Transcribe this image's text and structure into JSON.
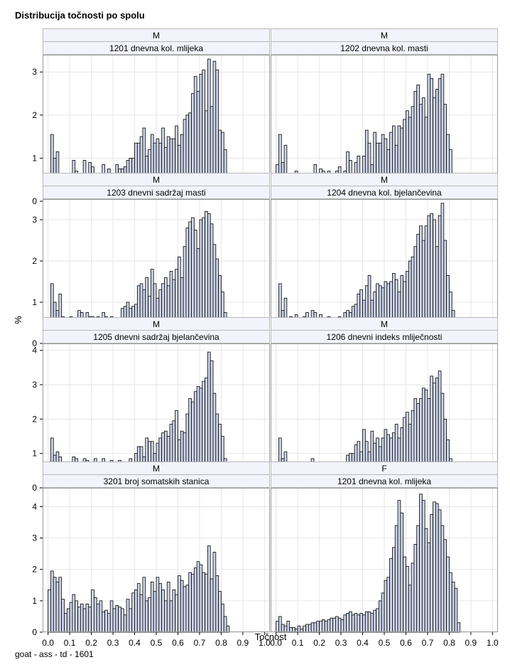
{
  "title": "Distribucija točnosti po spolu",
  "footnote": "goat - ass - td - 1601",
  "chart_data": {
    "type": "bar",
    "title": "Distribucija točnosti po spolu",
    "xlabel": "Točnost",
    "ylabel": "%",
    "x_ticks": [
      0.0,
      0.1,
      0.2,
      0.3,
      0.4,
      0.5,
      0.6,
      0.7,
      0.8,
      0.9,
      1.0
    ],
    "x_tick_labels": [
      "0.0",
      "0.1",
      "0.2",
      "0.3",
      "0.4",
      "0.5",
      "0.6",
      "0.7",
      "0.8",
      "0.9",
      "1.0"
    ],
    "bin_width": 0.0125,
    "xlim": [
      -0.025,
      1.025
    ],
    "rows": [
      {
        "ylim": [
          0,
          3.4
        ],
        "y_ticks": [
          0,
          1,
          2,
          3
        ]
      },
      {
        "ylim": [
          0,
          3.5
        ],
        "y_ticks": [
          0,
          1,
          2,
          3
        ]
      },
      {
        "ylim": [
          0,
          4.2
        ],
        "y_ticks": [
          0,
          1,
          2,
          3,
          4
        ]
      },
      {
        "ylim": [
          0,
          4.6
        ],
        "y_ticks": [
          0,
          1,
          2,
          3,
          4
        ]
      }
    ],
    "panels": [
      {
        "sex": "M",
        "trait": "1201 dnevna kol. mlijeka",
        "row": 0,
        "col": 0,
        "x_start": 0.0,
        "values": [
          0.4,
          1.55,
          1.0,
          1.15,
          0.65,
          0.6,
          0.5,
          0.65,
          0.6,
          0.95,
          0.7,
          0.65,
          0.45,
          0.95,
          0.5,
          0.9,
          0.8,
          0.55,
          0.45,
          0.5,
          0.85,
          0.5,
          0.75,
          0.55,
          0.5,
          0.85,
          0.75,
          0.75,
          0.8,
          0.95,
          1.0,
          1.0,
          1.35,
          1.35,
          1.5,
          1.7,
          1.05,
          1.2,
          1.55,
          1.35,
          1.45,
          1.35,
          1.7,
          1.25,
          1.5,
          1.45,
          1.45,
          1.75,
          1.3,
          1.55,
          1.9,
          2.0,
          2.05,
          2.5,
          2.9,
          2.55,
          2.95,
          3.05,
          2.1,
          3.3,
          2.2,
          3.25,
          3.05,
          1.65,
          1.6,
          1.2,
          0.65,
          0.12
        ]
      },
      {
        "sex": "M",
        "trait": "1202 dnevna kol. masti",
        "row": 0,
        "col": 1,
        "x_start": 0.0,
        "values": [
          0.85,
          1.55,
          0.9,
          1.3,
          0.55,
          0.65,
          0.6,
          0.7,
          0.65,
          0.65,
          0.6,
          0.65,
          0.6,
          0.65,
          0.85,
          0.5,
          0.75,
          0.7,
          0.3,
          0.7,
          0.45,
          0.3,
          0.7,
          0.8,
          0.3,
          0.7,
          1.15,
          0.95,
          0.65,
          0.9,
          1.05,
          0.65,
          1.05,
          1.65,
          1.35,
          0.85,
          1.6,
          1.35,
          1.35,
          1.55,
          1.45,
          1.2,
          1.6,
          1.75,
          1.3,
          1.75,
          1.7,
          1.9,
          2.1,
          1.95,
          2.2,
          2.55,
          2.7,
          2.25,
          2.4,
          1.95,
          2.95,
          2.85,
          2.4,
          2.6,
          2.85,
          2.95,
          2.25,
          1.55,
          1.2,
          0.65,
          0.35,
          0.1
        ]
      },
      {
        "sex": "M",
        "trait": "1203 dnevni sadržaj masti",
        "row": 1,
        "col": 0,
        "x_start": 0.0,
        "values": [
          0.45,
          1.45,
          1.0,
          0.8,
          1.2,
          0.65,
          0.45,
          0.55,
          0.65,
          0.4,
          0.55,
          0.8,
          0.75,
          0.45,
          0.75,
          0.65,
          0.65,
          0.35,
          0.65,
          0.6,
          0.75,
          0.65,
          0.6,
          0.65,
          0.4,
          0.35,
          0.6,
          0.85,
          0.9,
          1.0,
          0.85,
          0.9,
          0.95,
          1.4,
          1.45,
          1.3,
          1.6,
          1.15,
          1.8,
          1.45,
          1.1,
          1.3,
          1.45,
          1.6,
          1.4,
          1.75,
          1.55,
          1.8,
          2.1,
          1.6,
          2.35,
          2.8,
          2.95,
          3.05,
          2.75,
          2.3,
          3.0,
          3.05,
          3.2,
          3.15,
          2.9,
          2.4,
          2.05,
          1.65,
          1.25,
          0.75,
          0.35,
          0.12
        ]
      },
      {
        "sex": "M",
        "trait": "1204 dnevna kol. bjelančevina",
        "row": 1,
        "col": 1,
        "x_start": 0.0,
        "values": [
          0.45,
          1.45,
          0.8,
          1.1,
          0.55,
          0.65,
          0.6,
          0.7,
          0.55,
          0.35,
          0.65,
          0.75,
          0.5,
          0.8,
          0.75,
          0.45,
          0.7,
          0.6,
          0.5,
          0.65,
          0.45,
          0.55,
          0.45,
          0.65,
          0.55,
          0.75,
          0.8,
          0.75,
          0.9,
          0.95,
          1.2,
          1.3,
          1.05,
          1.4,
          1.65,
          1.05,
          1.25,
          1.45,
          1.4,
          1.35,
          1.5,
          1.45,
          1.5,
          1.7,
          1.55,
          1.25,
          1.65,
          1.5,
          1.75,
          2.0,
          2.1,
          2.35,
          2.65,
          2.85,
          2.5,
          2.85,
          3.1,
          3.15,
          3.0,
          2.35,
          3.1,
          3.4,
          2.5,
          1.65,
          1.25,
          0.8,
          0.35,
          0.1
        ]
      },
      {
        "sex": "M",
        "trait": "1205 dnevni sadržaj bjelančevina",
        "row": 2,
        "col": 0,
        "x_start": 0.0,
        "values": [
          0.25,
          1.45,
          0.95,
          1.05,
          0.9,
          0.5,
          0.55,
          0.55,
          0.6,
          0.9,
          0.85,
          0.55,
          0.75,
          0.85,
          0.8,
          0.75,
          0.5,
          0.85,
          0.45,
          0.55,
          0.85,
          0.75,
          0.45,
          0.8,
          0.45,
          0.45,
          0.8,
          0.55,
          0.7,
          0.65,
          0.85,
          0.7,
          1.0,
          1.2,
          1.2,
          0.9,
          1.45,
          1.35,
          1.35,
          1.0,
          1.3,
          1.45,
          1.6,
          1.65,
          1.5,
          1.85,
          1.95,
          2.25,
          1.4,
          1.65,
          1.6,
          2.15,
          2.6,
          2.5,
          2.8,
          2.95,
          2.9,
          3.1,
          3.2,
          3.95,
          3.7,
          2.75,
          2.15,
          1.85,
          1.5,
          0.85,
          0.3,
          0.1
        ]
      },
      {
        "sex": "M",
        "trait": "1206 dnevni indeks mliječnosti",
        "row": 2,
        "col": 1,
        "x_start": 0.0,
        "values": [
          0.5,
          1.45,
          0.85,
          1.05,
          0.55,
          0.65,
          0.55,
          0.65,
          0.6,
          0.5,
          0.7,
          0.65,
          0.45,
          0.85,
          0.45,
          0.75,
          0.7,
          0.45,
          0.65,
          0.5,
          0.7,
          0.45,
          0.55,
          0.75,
          0.7,
          0.75,
          0.95,
          1.0,
          1.0,
          1.25,
          1.35,
          1.05,
          1.7,
          1.35,
          1.05,
          1.65,
          1.3,
          1.45,
          1.2,
          1.45,
          1.7,
          1.55,
          1.45,
          1.6,
          1.85,
          1.45,
          1.75,
          2.05,
          2.2,
          1.85,
          2.25,
          2.6,
          2.45,
          2.6,
          2.9,
          2.85,
          2.6,
          3.25,
          3.05,
          3.2,
          3.4,
          2.75,
          2.0,
          1.4,
          0.85,
          0.5,
          0.1
        ]
      },
      {
        "sex": "M",
        "trait": "3201 broj somatskih stanica",
        "row": 3,
        "col": 0,
        "x_start": 0.0,
        "values": [
          1.35,
          1.95,
          1.75,
          1.6,
          1.75,
          1.05,
          0.6,
          0.75,
          0.95,
          1.2,
          1.0,
          0.8,
          0.9,
          0.75,
          0.9,
          0.8,
          1.35,
          1.1,
          0.9,
          1.0,
          0.65,
          0.7,
          0.6,
          1.0,
          0.75,
          0.85,
          0.8,
          0.75,
          0.55,
          1.05,
          0.75,
          1.25,
          1.35,
          1.55,
          1.2,
          1.75,
          1.0,
          1.1,
          1.6,
          1.3,
          1.75,
          1.55,
          1.35,
          1.0,
          1.6,
          1.0,
          1.35,
          1.2,
          1.8,
          1.65,
          1.45,
          1.5,
          1.9,
          1.85,
          2.05,
          2.25,
          2.15,
          1.9,
          1.85,
          2.75,
          1.7,
          2.55,
          1.8,
          1.3,
          0.9,
          0.5,
          0.2
        ]
      },
      {
        "sex": "F",
        "trait": "1201 dnevna kol. mlijeka",
        "row": 3,
        "col": 1,
        "x_start": 0.0,
        "values": [
          0.35,
          0.5,
          0.25,
          0.2,
          0.35,
          0.15,
          0.15,
          0.1,
          0.2,
          0.1,
          0.2,
          0.25,
          0.25,
          0.3,
          0.3,
          0.35,
          0.35,
          0.4,
          0.35,
          0.4,
          0.45,
          0.45,
          0.5,
          0.45,
          0.4,
          0.55,
          0.6,
          0.65,
          0.55,
          0.6,
          0.55,
          0.6,
          0.55,
          0.65,
          0.65,
          0.6,
          0.7,
          0.75,
          1.0,
          1.25,
          1.65,
          1.75,
          2.35,
          2.7,
          3.4,
          4.2,
          3.8,
          2.4,
          2.1,
          1.5,
          2.2,
          2.8,
          3.4,
          4.4,
          4.2,
          3.3,
          2.85,
          3.75,
          4.15,
          4.1,
          3.9,
          3.4,
          2.95,
          2.4,
          1.9,
          1.6,
          1.4,
          0.3
        ]
      }
    ]
  }
}
